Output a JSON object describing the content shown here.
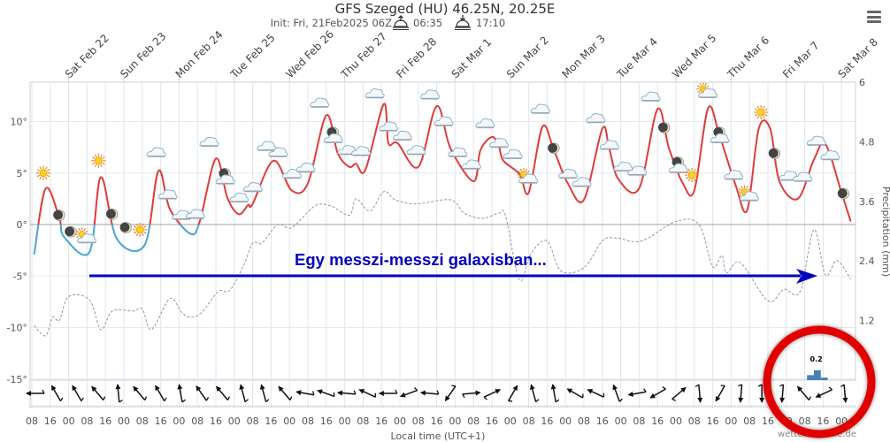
{
  "header": {
    "title": "GFS Szeged (HU) 46.25N, 20.25E",
    "init": "Init: Fri, 21Feb2025 06Z",
    "sunrise": "06:35",
    "sunset": "17:10"
  },
  "menu_icon": "hamburger-menu-icon",
  "annotation": {
    "text": "Egy messzi-messzi galaxisban...",
    "arrow_color": "#0000c0",
    "circle_color": "#e00000"
  },
  "credit": "wetterzentrale.de",
  "chart_data": {
    "type": "line",
    "xlabel": "Local time (UTC+1)",
    "ylabel_right": "Precipitation (mm)",
    "ylim_left": [
      -15,
      15
    ],
    "ylim_right": [
      0,
      6
    ],
    "y_ticks_left": [
      "10°",
      "5°",
      "0°",
      "-5°",
      "-10°",
      "-15°"
    ],
    "y_tick_values_left": [
      10,
      5,
      0,
      -5,
      -10,
      -15
    ],
    "y_ticks_right": [
      "6",
      "4.8",
      "3.6",
      "2.4",
      "1.2"
    ],
    "y_tick_values_right": [
      6,
      4.8,
      3.6,
      2.4,
      1.2
    ],
    "x_range": [
      "2025-02-21 08",
      "2025-03-08 06"
    ],
    "grid": true,
    "day_labels": [
      {
        "date": "2025-02-22 00",
        "label": "Sat Feb 22"
      },
      {
        "date": "2025-02-23 00",
        "label": "Sun Feb 23"
      },
      {
        "date": "2025-02-24 00",
        "label": "Mon Feb 24"
      },
      {
        "date": "2025-02-25 00",
        "label": "Tue Feb 25"
      },
      {
        "date": "2025-02-26 00",
        "label": "Wed Feb 26"
      },
      {
        "date": "2025-02-27 00",
        "label": "Thu Feb 27"
      },
      {
        "date": "2025-02-28 00",
        "label": "Fri Feb 28"
      },
      {
        "date": "2025-03-01 00",
        "label": "Sat Mar 1"
      },
      {
        "date": "2025-03-02 00",
        "label": "Sun Mar 2"
      },
      {
        "date": "2025-03-03 00",
        "label": "Mon Mar 3"
      },
      {
        "date": "2025-03-04 00",
        "label": "Tue Mar 4"
      },
      {
        "date": "2025-03-05 00",
        "label": "Wed Mar 5"
      },
      {
        "date": "2025-03-06 00",
        "label": "Thu Mar 6"
      },
      {
        "date": "2025-03-07 00",
        "label": "Fri Mar 7"
      },
      {
        "date": "2025-03-08 00",
        "label": "Sat Mar 8"
      }
    ],
    "time_labels": [
      "08",
      "16",
      "00",
      "08",
      "16",
      "00",
      "08",
      "16",
      "00",
      "08",
      "16",
      "00",
      "08",
      "16",
      "00",
      "08",
      "16",
      "00",
      "08",
      "16",
      "00",
      "08",
      "16",
      "00",
      "08",
      "16",
      "00",
      "08",
      "16",
      "00",
      "08",
      "16",
      "00",
      "08",
      "16",
      "00",
      "08",
      "16",
      "00",
      "08",
      "16",
      "00",
      "08",
      "16",
      "00"
    ],
    "temperature": {
      "colors": {
        "above_zero": "#e03c3c",
        "below_zero": "#4aa3d8"
      },
      "points": [
        [
          "2025-02-21 09",
          -2.9
        ],
        [
          "2025-02-21 14",
          3.5
        ],
        [
          "2025-02-21 20",
          0.6
        ],
        [
          "2025-02-21 22",
          -1.2
        ],
        [
          "2025-02-22 09",
          -2.7
        ],
        [
          "2025-02-22 14",
          4.6
        ],
        [
          "2025-02-22 21",
          -1.4
        ],
        [
          "2025-02-23 09",
          -2.0
        ],
        [
          "2025-02-23 15",
          5.2
        ],
        [
          "2025-02-23 20",
          1.5
        ],
        [
          "2025-02-24 05",
          -0.9
        ],
        [
          "2025-02-24 09",
          0.3
        ],
        [
          "2025-02-24 16",
          6.4
        ],
        [
          "2025-02-24 21",
          2.6
        ],
        [
          "2025-02-25 02",
          1.0
        ],
        [
          "2025-02-25 06",
          1.9
        ],
        [
          "2025-02-25 08",
          2.0
        ],
        [
          "2025-02-25 17",
          6.2
        ],
        [
          "2025-02-26 01",
          3.3
        ],
        [
          "2025-02-26 08",
          4.0
        ],
        [
          "2025-02-26 16",
          10.6
        ],
        [
          "2025-02-26 21",
          6.9
        ],
        [
          "2025-02-27 02",
          5.6
        ],
        [
          "2025-02-27 05",
          5.9
        ],
        [
          "2025-02-27 09",
          5.3
        ],
        [
          "2025-02-27 17",
          11.7
        ],
        [
          "2025-02-27 19",
          7.9
        ],
        [
          "2025-02-27 23",
          7.9
        ],
        [
          "2025-02-28 08",
          5.6
        ],
        [
          "2025-02-28 16",
          11.5
        ],
        [
          "2025-02-28 22",
          7.4
        ],
        [
          "2025-03-01 08",
          4.2
        ],
        [
          "2025-03-01 11",
          7.2
        ],
        [
          "2025-03-01 16",
          8.5
        ],
        [
          "2025-03-01 19",
          7.6
        ],
        [
          "2025-03-01 21",
          6.2
        ],
        [
          "2025-03-02 04",
          4.9
        ],
        [
          "2025-03-02 08",
          3.1
        ],
        [
          "2025-03-02 14",
          9.5
        ],
        [
          "2025-03-02 19",
          7.2
        ],
        [
          "2025-03-03 01",
          4.0
        ],
        [
          "2025-03-03 08",
          2.4
        ],
        [
          "2025-03-03 16",
          9.3
        ],
        [
          "2025-03-03 19",
          7.4
        ],
        [
          "2025-03-03 23",
          4.4
        ],
        [
          "2025-03-04 08",
          3.5
        ],
        [
          "2025-03-04 16",
          11.2
        ],
        [
          "2025-03-04 21",
          7.4
        ],
        [
          "2025-03-05 03",
          4.0
        ],
        [
          "2025-03-05 08",
          3.3
        ],
        [
          "2025-03-05 14",
          11.3
        ],
        [
          "2025-03-05 19",
          8.6
        ],
        [
          "2025-03-06 02",
          3.8
        ],
        [
          "2025-03-06 07",
          1.4
        ],
        [
          "2025-03-06 12",
          9.3
        ],
        [
          "2025-03-06 17",
          9.3
        ],
        [
          "2025-03-06 21",
          4.2
        ],
        [
          "2025-03-07 05",
          2.5
        ],
        [
          "2025-03-07 12",
          6.3
        ],
        [
          "2025-03-07 17",
          7.8
        ],
        [
          "2025-03-08 00",
          3.1
        ],
        [
          "2025-03-08 04",
          0.3
        ]
      ]
    },
    "dewpoint": {
      "color": "#8c98a8",
      "points": [
        [
          "2025-02-21 09",
          -9.8
        ],
        [
          "2025-02-21 14",
          -10.8
        ],
        [
          "2025-02-21 17",
          -9.0
        ],
        [
          "2025-02-21 20",
          -9.3
        ],
        [
          "2025-02-22 00",
          -7.0
        ],
        [
          "2025-02-22 09",
          -7.3
        ],
        [
          "2025-02-22 14",
          -10.2
        ],
        [
          "2025-02-22 19",
          -8.4
        ],
        [
          "2025-02-23 04",
          -8.4
        ],
        [
          "2025-02-23 08",
          -8.2
        ],
        [
          "2025-02-23 12",
          -10.2
        ],
        [
          "2025-02-23 20",
          -7.2
        ],
        [
          "2025-02-24 01",
          -8.5
        ],
        [
          "2025-02-24 05",
          -9.0
        ],
        [
          "2025-02-24 10",
          -8.5
        ],
        [
          "2025-02-24 17",
          -6.5
        ],
        [
          "2025-02-24 22",
          -6.4
        ],
        [
          "2025-02-25 04",
          -4.0
        ],
        [
          "2025-02-25 08",
          -1.8
        ],
        [
          "2025-02-25 12",
          -1.8
        ],
        [
          "2025-02-25 19",
          0.0
        ],
        [
          "2025-02-26 01",
          -0.3
        ],
        [
          "2025-02-26 11",
          1.8
        ],
        [
          "2025-02-26 18",
          1.8
        ],
        [
          "2025-02-27 02",
          0.9
        ],
        [
          "2025-02-27 05",
          2.5
        ],
        [
          "2025-02-27 11",
          1.3
        ],
        [
          "2025-02-27 17",
          3.2
        ],
        [
          "2025-02-27 22",
          2.4
        ],
        [
          "2025-02-28 07",
          2.0
        ],
        [
          "2025-02-28 22",
          2.4
        ],
        [
          "2025-03-01 04",
          1.1
        ],
        [
          "2025-03-01 12",
          0.6
        ],
        [
          "2025-03-01 19",
          1.1
        ],
        [
          "2025-03-01 22",
          0.8
        ],
        [
          "2025-03-02 04",
          -5.4
        ],
        [
          "2025-03-02 09",
          -2.8
        ],
        [
          "2025-03-02 16",
          -1.6
        ],
        [
          "2025-03-02 22",
          -4.5
        ],
        [
          "2025-03-03 08",
          -4.2
        ],
        [
          "2025-03-03 16",
          -1.6
        ],
        [
          "2025-03-03 22",
          -1.3
        ],
        [
          "2025-03-04 09",
          -1.6
        ],
        [
          "2025-03-05 00",
          0.3
        ],
        [
          "2025-03-05 10",
          0.0
        ],
        [
          "2025-03-05 16",
          -4.1
        ],
        [
          "2025-03-05 20",
          -3.0
        ],
        [
          "2025-03-05 22",
          -4.7
        ],
        [
          "2025-03-06 04",
          -3.7
        ],
        [
          "2025-03-06 16",
          -7.4
        ],
        [
          "2025-03-06 23",
          -6.3
        ],
        [
          "2025-03-07 06",
          -6.5
        ],
        [
          "2025-03-07 12",
          -0.5
        ],
        [
          "2025-03-07 17",
          -4.9
        ],
        [
          "2025-03-07 22",
          -3.5
        ],
        [
          "2025-03-08 04",
          -5.3
        ]
      ]
    },
    "precipitation": {
      "color": "#4a7fb5",
      "bars": [
        [
          "2025-03-07 09",
          0.1
        ],
        [
          "2025-03-07 12",
          0.2
        ],
        [
          "2025-03-07 15",
          0.05
        ]
      ],
      "label": "0.2"
    },
    "weather_icons": [
      [
        "2025-02-21 13",
        5.0,
        "sun"
      ],
      [
        "2025-02-21 20",
        0.9,
        "moon"
      ],
      [
        "2025-02-22 01",
        -0.7,
        "moon"
      ],
      [
        "2025-02-22 07",
        -1.2,
        "sun-cloud"
      ],
      [
        "2025-02-22 13",
        6.2,
        "sun"
      ],
      [
        "2025-02-22 19",
        1.0,
        "moon"
      ],
      [
        "2025-02-23 01",
        -0.3,
        "moon"
      ],
      [
        "2025-02-23 07",
        -0.5,
        "sun"
      ],
      [
        "2025-02-23 14",
        7.0,
        "cloud"
      ],
      [
        "2025-02-23 19",
        2.9,
        "cloud"
      ],
      [
        "2025-02-24 01",
        0.9,
        "cloud"
      ],
      [
        "2025-02-24 07",
        1.0,
        "cloud"
      ],
      [
        "2025-02-24 13",
        8.0,
        "cloud"
      ],
      [
        "2025-02-24 20",
        4.6,
        "moon-cloud"
      ],
      [
        "2025-02-25 02",
        2.6,
        "cloud"
      ],
      [
        "2025-02-25 08",
        3.6,
        "cloud"
      ],
      [
        "2025-02-25 14",
        7.6,
        "cloud"
      ],
      [
        "2025-02-25 19",
        7.0,
        "cloud"
      ],
      [
        "2025-02-26 01",
        4.9,
        "cloud"
      ],
      [
        "2025-02-26 07",
        5.5,
        "cloud"
      ],
      [
        "2025-02-26 13",
        11.8,
        "cloud"
      ],
      [
        "2025-02-26 19",
        8.6,
        "moon-cloud"
      ],
      [
        "2025-02-27 01",
        7.2,
        "cloud"
      ],
      [
        "2025-02-27 07",
        7.1,
        "cloud"
      ],
      [
        "2025-02-27 13",
        12.7,
        "cloud"
      ],
      [
        "2025-02-27 19",
        9.5,
        "cloud"
      ],
      [
        "2025-02-28 01",
        8.6,
        "cloud"
      ],
      [
        "2025-02-28 07",
        7.2,
        "cloud"
      ],
      [
        "2025-02-28 13",
        12.6,
        "cloud"
      ],
      [
        "2025-02-28 19",
        10.0,
        "cloud"
      ],
      [
        "2025-03-01 01",
        7.0,
        "cloud"
      ],
      [
        "2025-03-01 07",
        5.8,
        "cloud"
      ],
      [
        "2025-03-01 13",
        9.8,
        "cloud"
      ],
      [
        "2025-03-01 19",
        7.9,
        "cloud"
      ],
      [
        "2025-03-02 01",
        6.8,
        "cloud"
      ],
      [
        "2025-03-02 07",
        4.6,
        "sun-cloud"
      ],
      [
        "2025-03-02 13",
        11.2,
        "cloud"
      ],
      [
        "2025-03-02 19",
        7.4,
        "moon"
      ],
      [
        "2025-03-03 01",
        4.9,
        "cloud"
      ],
      [
        "2025-03-03 07",
        4.1,
        "cloud"
      ],
      [
        "2025-03-03 13",
        10.3,
        "cloud"
      ],
      [
        "2025-03-03 19",
        7.7,
        "cloud"
      ],
      [
        "2025-03-04 01",
        5.6,
        "cloud"
      ],
      [
        "2025-03-04 07",
        5.2,
        "cloud"
      ],
      [
        "2025-03-04 13",
        12.4,
        "cloud"
      ],
      [
        "2025-03-04 19",
        9.4,
        "moon"
      ],
      [
        "2025-03-05 01",
        5.7,
        "moon-cloud"
      ],
      [
        "2025-03-05 07",
        4.8,
        "sun"
      ],
      [
        "2025-03-05 13",
        12.9,
        "sun-cloud"
      ],
      [
        "2025-03-05 19",
        8.6,
        "moon-cloud"
      ],
      [
        "2025-03-06 01",
        4.8,
        "cloud"
      ],
      [
        "2025-03-06 07",
        2.9,
        "sun-cloud"
      ],
      [
        "2025-03-06 13",
        10.9,
        "sun"
      ],
      [
        "2025-03-06 19",
        6.9,
        "moon"
      ],
      [
        "2025-03-07 01",
        4.7,
        "cloud"
      ],
      [
        "2025-03-07 07",
        4.6,
        "cloud"
      ],
      [
        "2025-03-07 13",
        8.1,
        "cloud"
      ],
      [
        "2025-03-07 19",
        6.7,
        "cloud"
      ],
      [
        "2025-03-08 01",
        3.0,
        "moon"
      ]
    ],
    "wind_directions_deg": [
      270,
      330,
      330,
      320,
      355,
      320,
      330,
      350,
      325,
      320,
      345,
      345,
      320,
      280,
      290,
      275,
      295,
      270,
      250,
      275,
      215,
      85,
      65,
      30,
      345,
      350,
      300,
      295,
      340,
      260,
      240,
      50,
      175,
      210,
      185,
      180,
      185,
      320,
      245,
      175
    ]
  }
}
